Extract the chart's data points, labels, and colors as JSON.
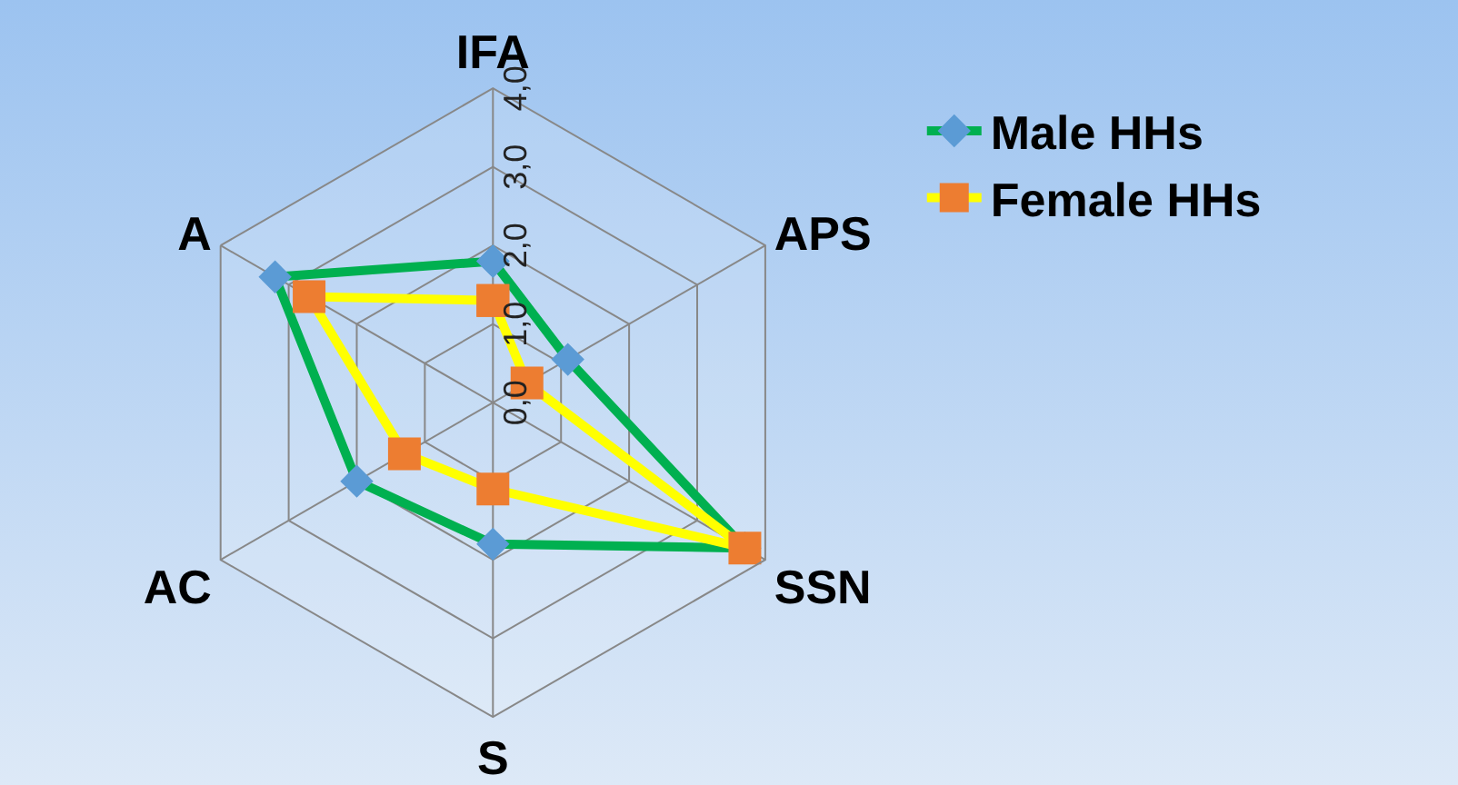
{
  "chart_data": {
    "type": "radar",
    "categories": [
      "IFA",
      "APS",
      "SSN",
      "S",
      "AC",
      "A"
    ],
    "series": [
      {
        "name": "Male HHs",
        "color": "#00b050",
        "values": [
          1.8,
          1.1,
          3.7,
          1.8,
          2.0,
          3.2
        ]
      },
      {
        "name": "Female HHs",
        "color": "#ffff00",
        "values": [
          1.3,
          0.5,
          3.7,
          1.1,
          1.3,
          2.7
        ]
      }
    ],
    "ylim": [
      0,
      4
    ],
    "yticks": [
      {
        "value": 0,
        "label": "0,0"
      },
      {
        "value": 1,
        "label": "1,0"
      },
      {
        "value": 2,
        "label": "2,0"
      },
      {
        "value": 3,
        "label": "3,0"
      },
      {
        "value": 4,
        "label": "4,0"
      }
    ],
    "grid": true,
    "legend": "top right",
    "marker": "diamond"
  }
}
